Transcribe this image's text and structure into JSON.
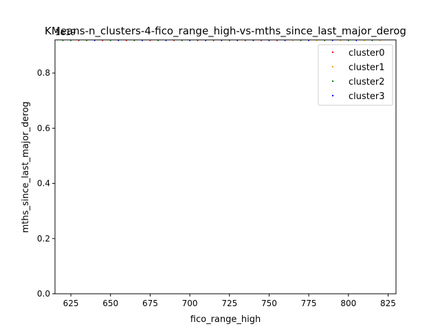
{
  "chart_data": {
    "type": "scatter",
    "title": "KMeans-n_clusters-4-fico_range_high-vs-mths_since_last_major_derog",
    "xlabel": "fico_range_high",
    "ylabel": "mths_since_last_major_derog",
    "y_offset_label": "1e19",
    "xlim": [
      615,
      830
    ],
    "ylim": [
      0,
      0.92
    ],
    "x_ticks": [
      625,
      650,
      675,
      700,
      725,
      750,
      775,
      800,
      825
    ],
    "y_ticks": [
      0.0,
      0.2,
      0.4,
      0.6,
      0.8
    ],
    "x_tick_labels": [
      "625",
      "650",
      "675",
      "700",
      "725",
      "750",
      "775",
      "800",
      "825"
    ],
    "y_tick_labels": [
      "0.0",
      "0.2",
      "0.4",
      "0.6",
      "0.8"
    ],
    "legend_position": "top-right",
    "series": [
      {
        "name": "cluster0",
        "color": "#ff0000",
        "x": [],
        "y": []
      },
      {
        "name": "cluster1",
        "color": "#ffa500",
        "x": [],
        "y": []
      },
      {
        "name": "cluster2",
        "color": "#008000",
        "x": [],
        "y": []
      },
      {
        "name": "cluster3",
        "color": "#0000ff",
        "x": [],
        "y": []
      }
    ],
    "top_band_points": {
      "y": 0.92,
      "x": [
        620,
        625,
        630,
        635,
        640,
        645,
        650,
        655,
        660,
        665,
        670,
        675,
        680,
        685,
        690,
        695,
        700,
        705,
        710,
        715,
        720,
        725,
        730,
        735,
        740,
        745,
        750,
        755,
        760,
        765,
        770,
        775,
        780,
        785,
        790,
        795,
        800,
        805,
        810,
        815,
        820
      ],
      "series_index": [
        2,
        2,
        0,
        2,
        3,
        0,
        2,
        3,
        0,
        2,
        3,
        0,
        2,
        3,
        0,
        2,
        3,
        0,
        3,
        0,
        3,
        0,
        3,
        0,
        3,
        0,
        3,
        0,
        3,
        1,
        2,
        3,
        1,
        2,
        3,
        1,
        2,
        3,
        1,
        2,
        1
      ]
    }
  }
}
